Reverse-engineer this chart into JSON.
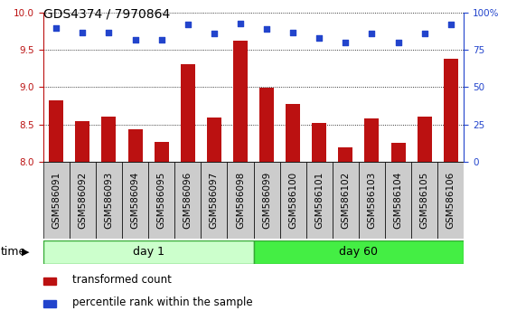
{
  "title": "GDS4374 / 7970864",
  "samples": [
    "GSM586091",
    "GSM586092",
    "GSM586093",
    "GSM586094",
    "GSM586095",
    "GSM586096",
    "GSM586097",
    "GSM586098",
    "GSM586099",
    "GSM586100",
    "GSM586101",
    "GSM586102",
    "GSM586103",
    "GSM586104",
    "GSM586105",
    "GSM586106"
  ],
  "bar_values": [
    8.82,
    8.54,
    8.6,
    8.44,
    8.27,
    9.31,
    8.59,
    9.62,
    8.99,
    8.78,
    8.52,
    8.19,
    8.58,
    8.25,
    8.6,
    9.38
  ],
  "percentile_values": [
    90,
    87,
    87,
    82,
    82,
    92,
    86,
    93,
    89,
    87,
    83,
    80,
    86,
    80,
    86,
    92
  ],
  "bar_color": "#bb1111",
  "percentile_color": "#2244cc",
  "ylim_left": [
    8,
    10
  ],
  "ylim_right": [
    0,
    100
  ],
  "yticks_left": [
    8,
    8.5,
    9,
    9.5,
    10
  ],
  "yticks_right": [
    0,
    25,
    50,
    75,
    100
  ],
  "day1_label": "day 1",
  "day60_label": "day 60",
  "day1_count": 8,
  "day60_count": 8,
  "time_label": "time",
  "legend_bar_label": "transformed count",
  "legend_pct_label": "percentile rank within the sample",
  "day1_color": "#ccffcc",
  "day60_color": "#44ee44",
  "cell_color": "#cccccc",
  "title_fontsize": 10,
  "tick_fontsize": 7.5,
  "legend_fontsize": 8.5,
  "label_fontsize": 9
}
